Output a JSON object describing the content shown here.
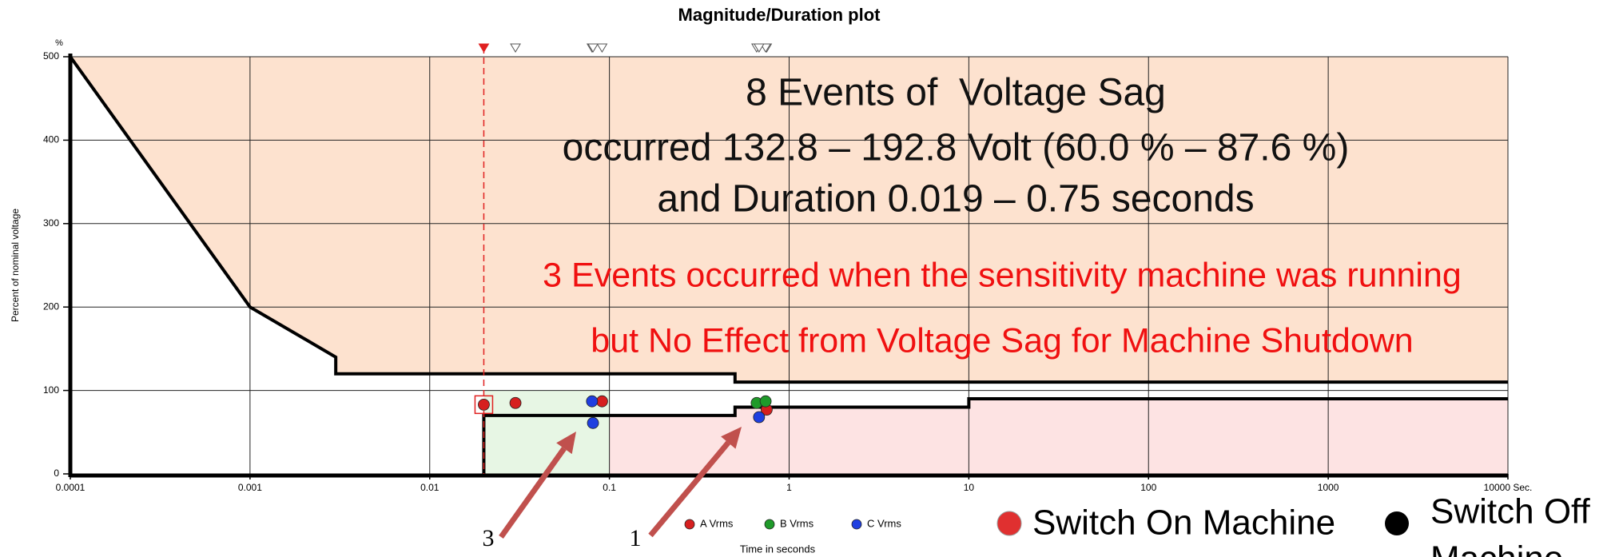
{
  "chart_data": {
    "type": "scatter",
    "title": "Magnitude/Duration plot",
    "x_label": "Time in seconds",
    "y_label": "Percent of nominal voltage",
    "y_unit": "%",
    "log_x": true,
    "grid": true,
    "xlim": [
      0.0001,
      10000
    ],
    "ylim": [
      0,
      500
    ],
    "xticks": [
      0.0001,
      0.001,
      0.01,
      0.1,
      1,
      10,
      100,
      1000,
      {
        "value": 10000,
        "label": "10000 Sec."
      }
    ],
    "yticks": [
      0,
      100,
      200,
      300,
      400,
      500
    ],
    "series": [
      {
        "name": "A Vrms",
        "color": "#d61f1f",
        "x": [
          0.02,
          0.03,
          0.091,
          0.75
        ],
        "values": [
          83,
          85,
          87,
          77
        ]
      },
      {
        "name": "B Vrms",
        "color": "#1f9a2a",
        "x": [
          0.66,
          0.74
        ],
        "values": [
          85,
          87
        ]
      },
      {
        "name": "C Vrms",
        "color": "#1f3fe0",
        "x": [
          0.08,
          0.081,
          0.68
        ],
        "values": [
          87,
          61,
          68
        ]
      }
    ],
    "selected_point": [
      0,
      0
    ],
    "curves": [
      {
        "x": [
          0.0001,
          0.001,
          0.003,
          0.003,
          0.5,
          0.5,
          10000
        ],
        "values": [
          500,
          200,
          140,
          120,
          120,
          110,
          110
        ]
      },
      {
        "x": [
          0.02,
          0.02,
          0.5,
          0.5,
          10,
          10,
          10000
        ],
        "values": [
          0,
          70,
          70,
          80,
          80,
          90,
          90
        ]
      }
    ],
    "zones": [
      {
        "color": "#fde2cf",
        "x": [
          0.0001,
          0.001,
          0.003,
          0.003,
          0.5,
          0.5,
          10000,
          10000
        ],
        "values": [
          500,
          200,
          140,
          120,
          120,
          110,
          110,
          500
        ]
      },
      {
        "color": "#e7f6e4",
        "x": [
          0.02,
          0.1,
          0.1,
          0.02
        ],
        "values": [
          0,
          0,
          100,
          100
        ]
      },
      {
        "color": "#fde3e3",
        "x": [
          0.1,
          0.5,
          0.5,
          10,
          10,
          10000,
          10000,
          0.1
        ],
        "values": [
          70,
          70,
          80,
          80,
          90,
          90,
          0,
          0
        ]
      }
    ],
    "annotations": [
      "8 Events of  Voltage Sag",
      "occurred 132.8 – 192.8 Volt (60.0 % – 87.6 %)",
      "and Duration 0.019 – 0.75 seconds"
    ],
    "notes": [
      "3 Events occurred when the sensitivity machine was running",
      "but No Effect from Voltage Sag for Machine Shutdown"
    ],
    "arrow_labels": [
      "3",
      "1"
    ],
    "marker_legend": [
      "Switch On Machine",
      "Switch Off",
      "Machine"
    ]
  }
}
